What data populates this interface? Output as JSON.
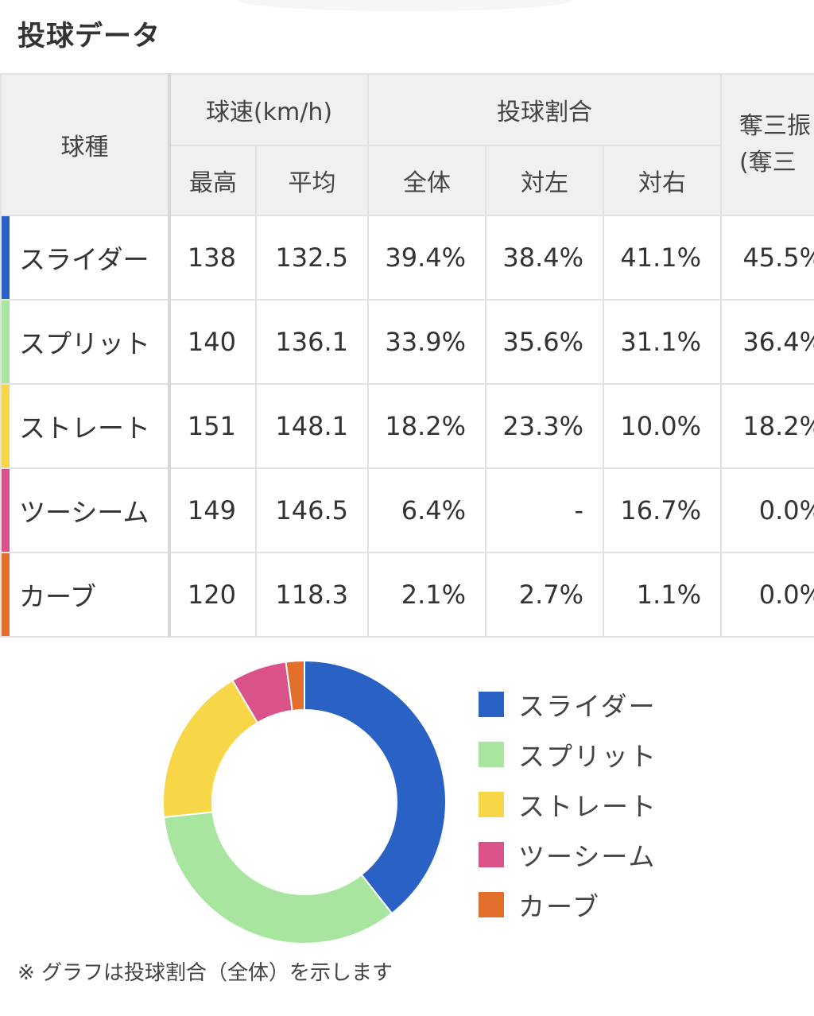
{
  "header": {
    "title": "投球データ"
  },
  "table": {
    "head": {
      "pitch_type": "球種",
      "velocity_group": "球速(km/h)",
      "ratio_group": "投球割合",
      "strikeout_line1": "奪三振",
      "strikeout_line2": "(奪三",
      "max": "最高",
      "avg": "平均",
      "all": "全体",
      "vs_left": "対左",
      "vs_right": "対右"
    },
    "rows": [
      {
        "name": "スライダー",
        "color": "#2962c4",
        "max": "138",
        "avg": "132.5",
        "all": "39.4%",
        "vs_left": "38.4%",
        "vs_right": "41.1%",
        "strikeout": "45.5%"
      },
      {
        "name": "スプリット",
        "color": "#a8e6a0",
        "max": "140",
        "avg": "136.1",
        "all": "33.9%",
        "vs_left": "35.6%",
        "vs_right": "31.1%",
        "strikeout": "36.4%"
      },
      {
        "name": "ストレート",
        "color": "#f7d648",
        "max": "151",
        "avg": "148.1",
        "all": "18.2%",
        "vs_left": "23.3%",
        "vs_right": "10.0%",
        "strikeout": "18.2%"
      },
      {
        "name": "ツーシーム",
        "color": "#d9538a",
        "max": "149",
        "avg": "146.5",
        "all": "6.4%",
        "vs_left": "-",
        "vs_right": "16.7%",
        "strikeout": "0.0%"
      },
      {
        "name": "カーブ",
        "color": "#e36f2c",
        "max": "120",
        "avg": "118.3",
        "all": "2.1%",
        "vs_left": "2.7%",
        "vs_right": "1.1%",
        "strikeout": "0.0%"
      }
    ]
  },
  "chart_data": {
    "type": "pie",
    "categories": [
      "スライダー",
      "スプリット",
      "ストレート",
      "ツーシーム",
      "カーブ"
    ],
    "values": [
      39.4,
      33.9,
      18.2,
      6.4,
      2.1
    ],
    "colors": [
      "#2962c4",
      "#a8e6a0",
      "#f7d648",
      "#d9538a",
      "#e36f2c"
    ],
    "title": "",
    "legend_position": "right",
    "donut": true
  },
  "footnote": "※ グラフは投球割合（全体）を示します"
}
